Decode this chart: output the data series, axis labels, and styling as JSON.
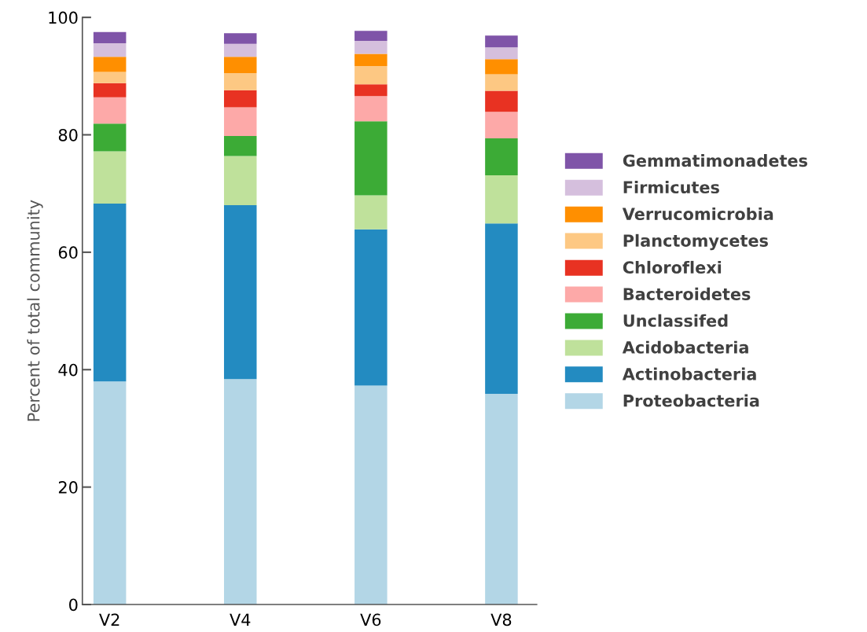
{
  "chart_data": {
    "type": "bar",
    "stacked": true,
    "ylabel": "Percent of total community",
    "categories": [
      "V2",
      "V4",
      "V6",
      "V8"
    ],
    "ylim": [
      0,
      100
    ],
    "yticks": [
      0,
      20,
      40,
      60,
      80,
      100
    ],
    "grid": false,
    "legend": "right",
    "series": [
      {
        "name": "Proteobacteria",
        "color": "#b3d6e6",
        "values": [
          38.0,
          38.4,
          37.3,
          35.9
        ]
      },
      {
        "name": "Actinobacteria",
        "color": "#238bc1",
        "values": [
          30.3,
          29.6,
          26.6,
          29.0
        ]
      },
      {
        "name": "Acidobacteria",
        "color": "#bfe19b",
        "values": [
          8.9,
          8.4,
          5.8,
          8.2
        ]
      },
      {
        "name": "Unclassifed",
        "color": "#3cab36",
        "values": [
          4.7,
          3.4,
          12.6,
          6.3
        ]
      },
      {
        "name": "Bacteroidetes",
        "color": "#fda9a8",
        "values": [
          4.5,
          4.9,
          4.3,
          4.5
        ]
      },
      {
        "name": "Chloroflexi",
        "color": "#e83222",
        "values": [
          2.4,
          2.9,
          2.0,
          3.6
        ]
      },
      {
        "name": "Planctomycetes",
        "color": "#fdc883",
        "values": [
          1.9,
          2.9,
          3.1,
          2.8
        ]
      },
      {
        "name": "Verrucomicrobia",
        "color": "#ff8f00",
        "values": [
          2.6,
          2.8,
          2.1,
          2.6
        ]
      },
      {
        "name": "Firmicutes",
        "color": "#d5bfdd",
        "values": [
          2.3,
          2.2,
          2.2,
          2.0
        ]
      },
      {
        "name": "Gemmatimonadetes",
        "color": "#7f54a8",
        "values": [
          1.9,
          1.8,
          1.7,
          2.0
        ]
      }
    ]
  }
}
